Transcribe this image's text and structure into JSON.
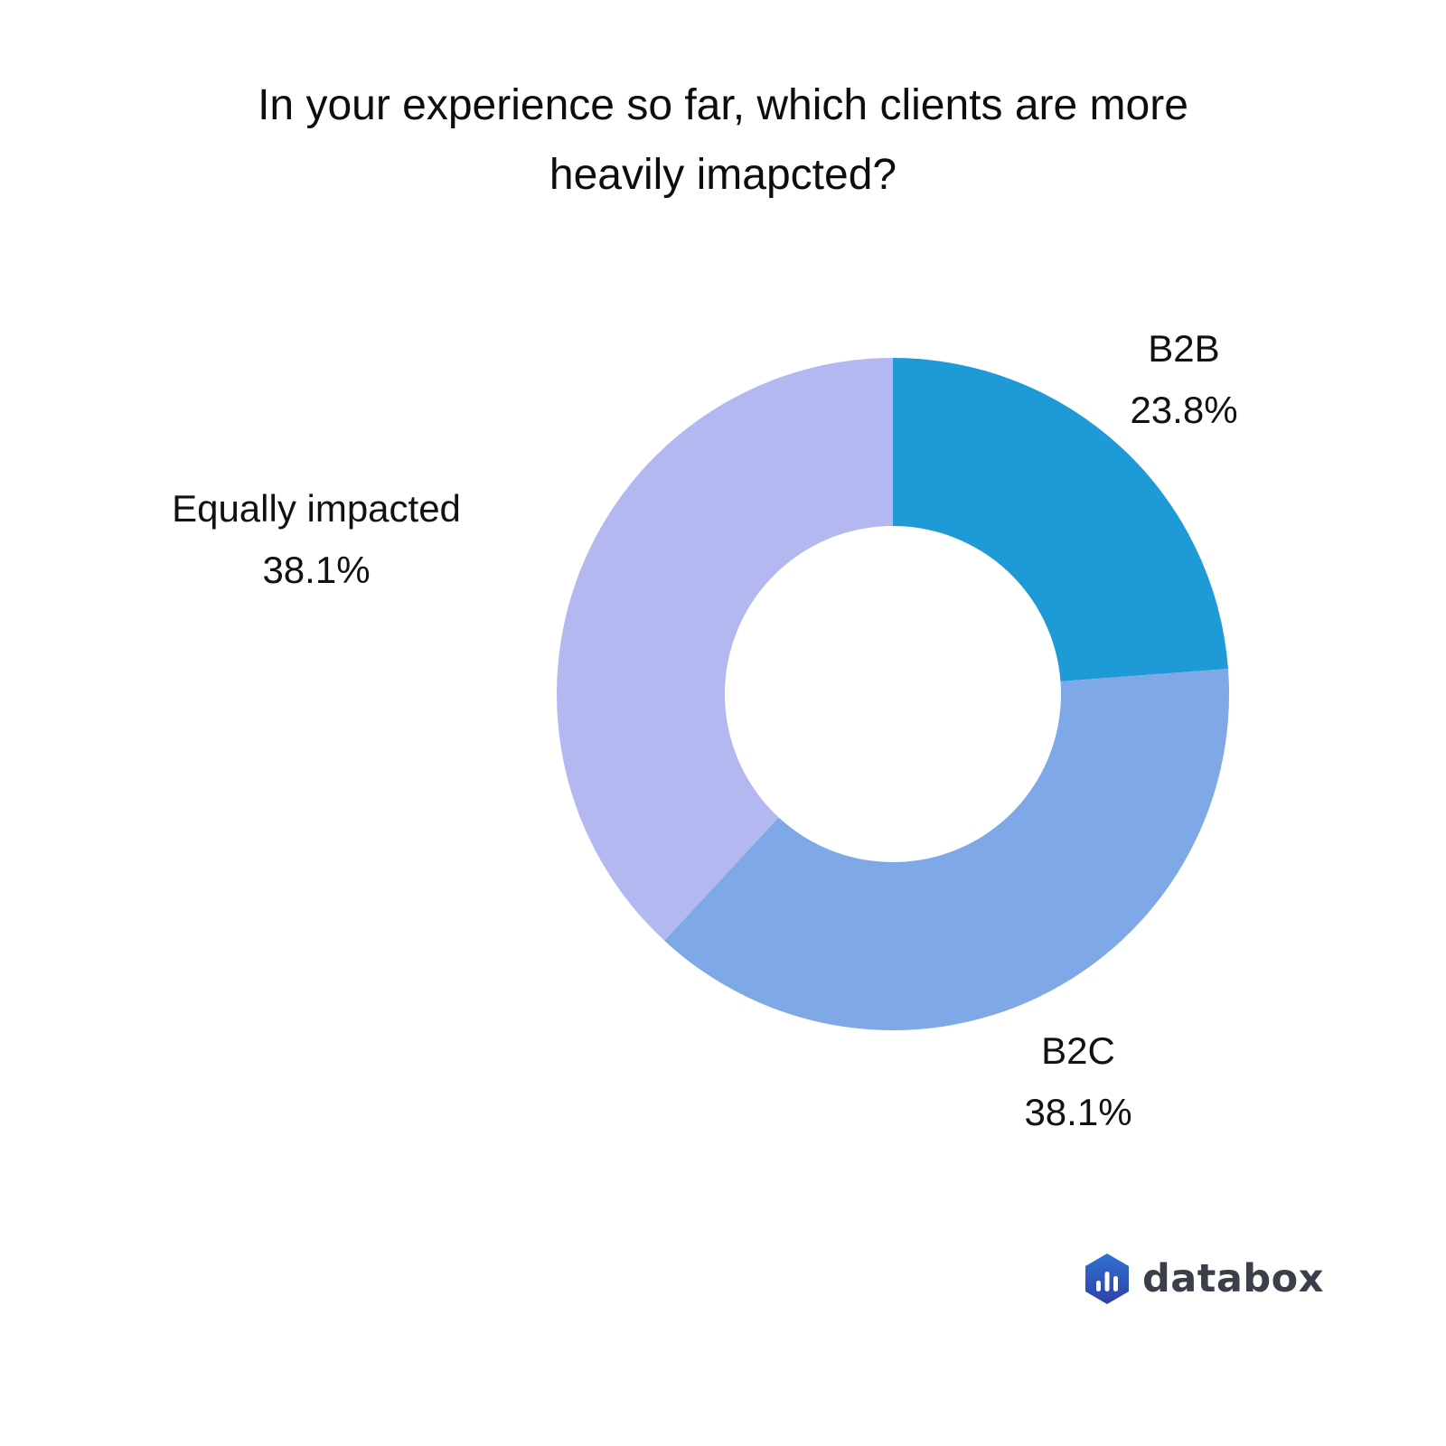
{
  "chart_data": {
    "type": "pie",
    "variant": "donut",
    "title_lines": [
      "In your experience so far, which clients are more",
      "heavily imapcted?"
    ],
    "slices": [
      {
        "label": "B2B",
        "value": 23.8,
        "value_label": "23.8%",
        "color": "#1e9ad6"
      },
      {
        "label": "B2C",
        "value": 38.1,
        "value_label": "38.1%",
        "color": "#7fa9e6"
      },
      {
        "label": "Equally impacted",
        "value": 38.1,
        "value_label": "38.1%",
        "color": "#b4b8f1"
      }
    ],
    "start_angle": "12 o'clock",
    "direction": "clockwise",
    "legend": "none",
    "labels": "outside"
  },
  "branding": {
    "logo_text": "databox",
    "logo_colors": {
      "top": "#2f74d0",
      "bottom": "#2f3fa8",
      "bars": "#ffffff"
    }
  }
}
